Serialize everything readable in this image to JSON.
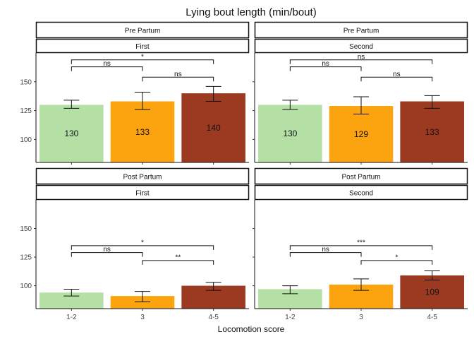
{
  "chart_data": {
    "type": "bar",
    "title": "Lying bout length (min/bout)",
    "xlabel": "Locomotion score",
    "ylabel": "",
    "categories": [
      "1-2",
      "3",
      "4-5"
    ],
    "colors": [
      "#b5e0a5",
      "#fca40f",
      "#9c3a21"
    ],
    "ylim": [
      80,
      175
    ],
    "yticks": [
      100,
      125,
      150
    ],
    "panels": [
      {
        "period": "Pre Partum",
        "lactation": "First",
        "values": [
          130,
          133,
          140
        ],
        "err_low": [
          127,
          126,
          133
        ],
        "err_high": [
          134,
          141,
          146
        ],
        "bar_labels": [
          "130",
          "133",
          "140"
        ],
        "comparisons": [
          {
            "from": 0,
            "to": 1,
            "label": "ns",
            "y": 163
          },
          {
            "from": 1,
            "to": 2,
            "label": "ns",
            "y": 154
          },
          {
            "from": 0,
            "to": 2,
            "label": "*",
            "y": 169
          }
        ]
      },
      {
        "period": "Pre Partum",
        "lactation": "Second",
        "values": [
          130,
          129,
          133
        ],
        "err_low": [
          126,
          122,
          127
        ],
        "err_high": [
          134,
          137,
          138
        ],
        "bar_labels": [
          "130",
          "129",
          "133"
        ],
        "comparisons": [
          {
            "from": 0,
            "to": 1,
            "label": "ns",
            "y": 163
          },
          {
            "from": 1,
            "to": 2,
            "label": "ns",
            "y": 154
          },
          {
            "from": 0,
            "to": 2,
            "label": "ns",
            "y": 169
          }
        ]
      },
      {
        "period": "Post Partum",
        "lactation": "First",
        "values": [
          94,
          91,
          100
        ],
        "err_low": [
          91,
          86,
          96
        ],
        "err_high": [
          97,
          95,
          103
        ],
        "bar_labels": [
          "",
          "",
          ""
        ],
        "comparisons": [
          {
            "from": 0,
            "to": 1,
            "label": "ns",
            "y": 129
          },
          {
            "from": 1,
            "to": 2,
            "label": "**",
            "y": 122
          },
          {
            "from": 0,
            "to": 2,
            "label": "*",
            "y": 135
          }
        ]
      },
      {
        "period": "Post Partum",
        "lactation": "Second",
        "values": [
          97,
          101,
          109
        ],
        "err_low": [
          93,
          96,
          105
        ],
        "err_high": [
          100,
          106,
          113
        ],
        "bar_labels": [
          "",
          "",
          "109"
        ],
        "comparisons": [
          {
            "from": 0,
            "to": 1,
            "label": "ns",
            "y": 129
          },
          {
            "from": 1,
            "to": 2,
            "label": "*",
            "y": 122
          },
          {
            "from": 0,
            "to": 2,
            "label": "***",
            "y": 135
          }
        ]
      }
    ]
  }
}
